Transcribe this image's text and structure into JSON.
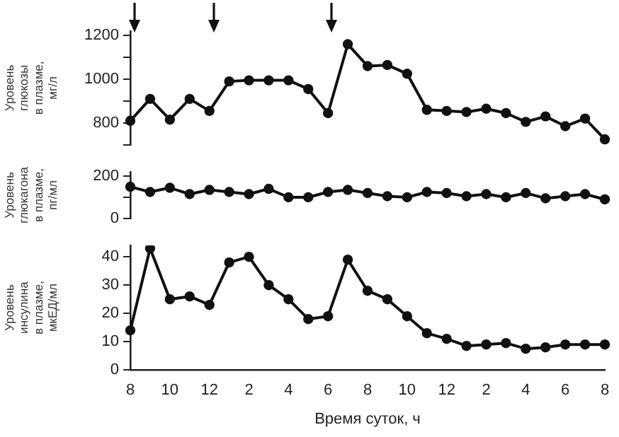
{
  "chart_data": [
    {
      "type": "line",
      "ylabel": "Уровень\nглюкозы\nв плазме,\nмг/л",
      "categories": [
        "8",
        null,
        "10",
        null,
        "12",
        null,
        "2",
        null,
        "4",
        null,
        "6",
        null,
        "8",
        null,
        "10",
        null,
        "12",
        null,
        "2",
        null,
        "4",
        null,
        "6",
        null,
        "8"
      ],
      "series": [
        {
          "color": "#111111",
          "values": [
            810,
            910,
            815,
            910,
            855,
            990,
            995,
            995,
            995,
            955,
            845,
            1160,
            1060,
            1065,
            1025,
            860,
            855,
            850,
            865,
            845,
            805,
            830,
            785,
            820,
            725
          ]
        }
      ],
      "ylim": [
        700,
        1220
      ],
      "yticks": [
        {
          "value": 700,
          "label": null
        },
        800,
        {
          "value": 900,
          "label": null
        },
        1000,
        {
          "value": 1100,
          "label": null
        },
        1200
      ],
      "tick_labels": "y",
      "grid": false,
      "legend": false,
      "marker": "circle",
      "line_style": "solid"
    },
    {
      "type": "line",
      "ylabel": "Уровень\nглюкагона\nв плазме,\nпг/мл",
      "categories": [
        "8",
        null,
        "10",
        null,
        "12",
        null,
        "2",
        null,
        "4",
        null,
        "6",
        null,
        "8",
        null,
        "10",
        null,
        "12",
        null,
        "2",
        null,
        "4",
        null,
        "6",
        null,
        "8"
      ],
      "series": [
        {
          "color": "#111111",
          "values": [
            150,
            125,
            145,
            115,
            135,
            125,
            115,
            140,
            100,
            100,
            125,
            135,
            120,
            105,
            100,
            125,
            120,
            105,
            115,
            100,
            120,
            95,
            105,
            115,
            90
          ]
        }
      ],
      "ylim": [
        0,
        220
      ],
      "yticks": [
        0,
        {
          "value": 100,
          "label": null
        },
        200
      ],
      "tick_labels": "y",
      "grid": false,
      "legend": false,
      "marker": "circle",
      "line_style": "solid"
    },
    {
      "type": "line",
      "xlabel": "Время суток, ч",
      "ylabel": "Уровень\nинсулина\nв плазме,\nмкЕД/мл",
      "categories": [
        "8",
        null,
        "10",
        null,
        "12",
        null,
        "2",
        null,
        "4",
        null,
        "6",
        null,
        "8",
        null,
        "10",
        null,
        "12",
        null,
        "2",
        null,
        "4",
        null,
        "6",
        null,
        "8"
      ],
      "series": [
        {
          "color": "#111111",
          "values": [
            14,
            43,
            25,
            26,
            23,
            38,
            40,
            30,
            25,
            18,
            19,
            39,
            28,
            25,
            19,
            13,
            11,
            8.5,
            9,
            9.5,
            7.5,
            8,
            9,
            9,
            9
          ]
        }
      ],
      "ylim": [
        0,
        44
      ],
      "yticks": [
        0,
        10,
        20,
        30,
        40
      ],
      "grid": false,
      "legend": false,
      "marker": "circle",
      "line_style": "solid"
    }
  ]
}
